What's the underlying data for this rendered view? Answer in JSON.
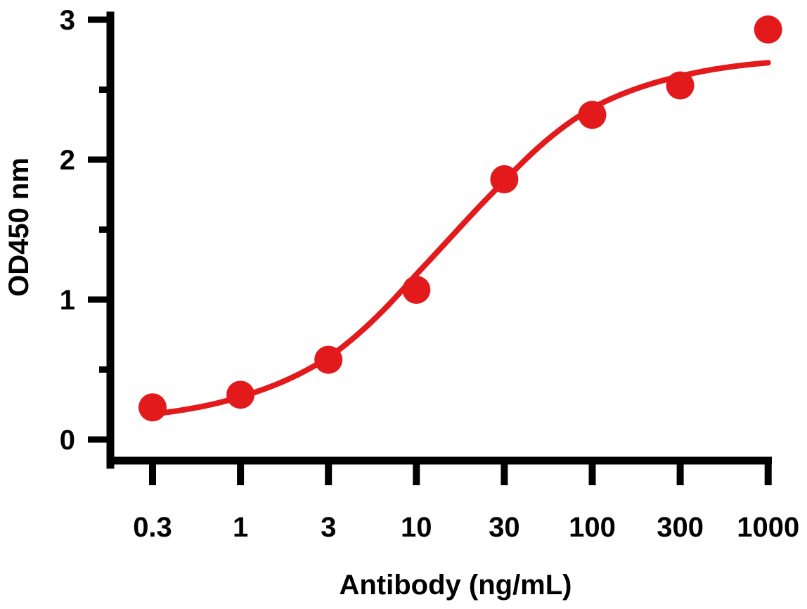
{
  "chart_data": {
    "type": "scatter",
    "title": "",
    "xlabel": "Antibody (ng/mL)",
    "ylabel": "OD450 nm",
    "x_scale": "log",
    "x_ticks": [
      0.3,
      1,
      3,
      10,
      30,
      100,
      300,
      1000
    ],
    "x_tick_labels": [
      "0.3",
      "1",
      "3",
      "10",
      "30",
      "100",
      "300",
      "1000"
    ],
    "y_ticks": [
      0,
      1,
      2,
      3
    ],
    "y_tick_labels": [
      "0",
      "1",
      "2",
      "3"
    ],
    "y_minor_ticks": [
      0.5,
      1.5,
      2.5
    ],
    "ylim": [
      0,
      3
    ],
    "grid": false,
    "legend": "none",
    "color": "#e31a1c",
    "series": [
      {
        "x": [
          0.3,
          1,
          3,
          10,
          30,
          100,
          300,
          1000
        ],
        "y": [
          0.23,
          0.32,
          0.57,
          1.07,
          1.86,
          2.32,
          2.53,
          2.93
        ]
      }
    ],
    "fit_curve": {
      "model": "4PL",
      "bottom": 0.12,
      "top": 2.74,
      "ec50": 15,
      "hill": 0.95
    }
  }
}
